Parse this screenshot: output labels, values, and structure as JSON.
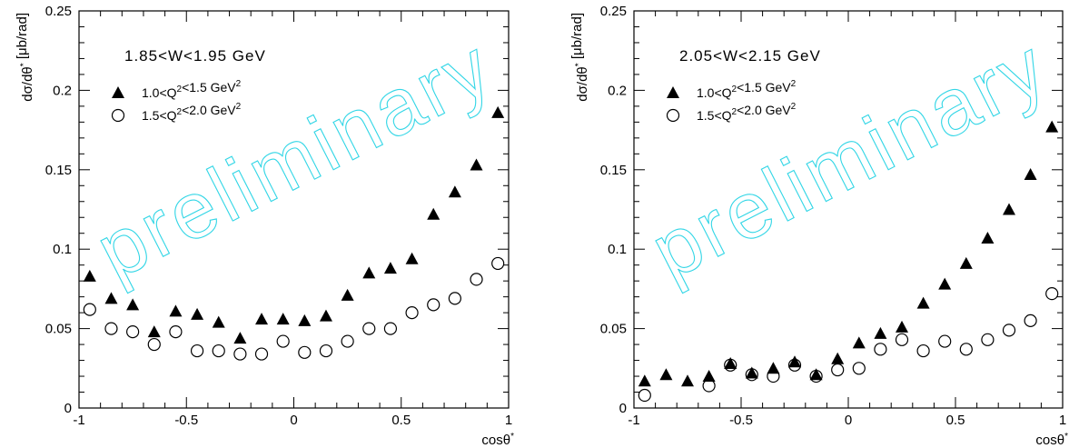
{
  "chart_data": [
    {
      "type": "scatter",
      "annotation": "1.85<W<1.95 GeV",
      "watermark": "preliminary",
      "xlabel": "cosθ*",
      "ylabel": "dσ/dθ*   [μb/rad]",
      "xlim": [
        -1,
        1
      ],
      "ylim": [
        0,
        0.25
      ],
      "xticks": [
        "-1",
        "-0.5",
        "0",
        "0.5",
        "1"
      ],
      "yticks": [
        "0",
        "0.05",
        "0.1",
        "0.15",
        "0.2",
        "0.25"
      ],
      "legend_placement": "top-left",
      "x": [
        -0.95,
        -0.85,
        -0.75,
        -0.65,
        -0.55,
        -0.45,
        -0.35,
        -0.25,
        -0.15,
        -0.05,
        0.05,
        0.15,
        0.25,
        0.35,
        0.45,
        0.55,
        0.65,
        0.75,
        0.85,
        0.95
      ],
      "series": [
        {
          "name": "1.0<Q²<1.5 GeV²",
          "marker": "filled-triangle",
          "values": [
            0.083,
            0.069,
            0.065,
            0.048,
            0.061,
            0.059,
            0.054,
            0.044,
            0.056,
            0.056,
            0.055,
            0.058,
            0.071,
            0.085,
            0.088,
            0.094,
            0.122,
            0.136,
            0.153,
            0.186
          ]
        },
        {
          "name": "1.5<Q²<2.0 GeV²",
          "marker": "open-circle",
          "values": [
            0.062,
            0.05,
            0.048,
            0.04,
            0.048,
            0.036,
            0.036,
            0.034,
            0.034,
            0.042,
            0.035,
            0.036,
            0.042,
            0.05,
            0.05,
            0.06,
            0.065,
            0.069,
            0.081,
            0.091
          ]
        }
      ]
    },
    {
      "type": "scatter",
      "annotation": "2.05<W<2.15 GeV",
      "watermark": "preliminary",
      "xlabel": "cosθ*",
      "ylabel": "dσ/dθ*   [μb/rad]",
      "xlim": [
        -1,
        1
      ],
      "ylim": [
        0,
        0.25
      ],
      "xticks": [
        "-1",
        "-0.5",
        "0",
        "0.5",
        "1"
      ],
      "yticks": [
        "0",
        "0.05",
        "0.1",
        "0.15",
        "0.2",
        "0.25"
      ],
      "legend_placement": "top-left",
      "x": [
        -0.95,
        -0.85,
        -0.75,
        -0.65,
        -0.55,
        -0.45,
        -0.35,
        -0.25,
        -0.15,
        -0.05,
        0.05,
        0.15,
        0.25,
        0.35,
        0.45,
        0.55,
        0.65,
        0.75,
        0.85,
        0.95
      ],
      "series": [
        {
          "name": "1.0<Q²<1.5 GeV²",
          "marker": "filled-triangle",
          "values": [
            0.017,
            0.021,
            0.017,
            0.02,
            0.028,
            0.022,
            0.025,
            0.029,
            0.021,
            0.031,
            0.041,
            0.047,
            0.051,
            0.066,
            0.078,
            0.091,
            0.107,
            0.125,
            0.147,
            0.177
          ]
        },
        {
          "name": "1.5<Q²<2.0 GeV²",
          "marker": "open-circle",
          "values": [
            0.008,
            null,
            null,
            0.014,
            0.027,
            0.021,
            0.02,
            0.027,
            0.02,
            0.024,
            0.025,
            0.037,
            0.043,
            0.036,
            0.042,
            0.037,
            0.043,
            0.049,
            0.055,
            0.072
          ]
        }
      ]
    }
  ]
}
